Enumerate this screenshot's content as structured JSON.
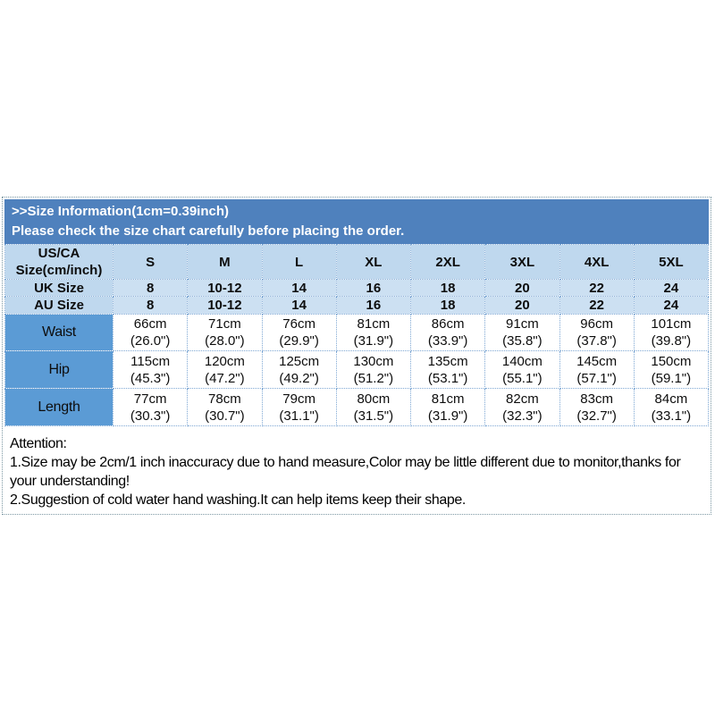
{
  "banner": {
    "line1": ">>Size Information(1cm=0.39inch)",
    "line2": "Please check the size chart carefully before placing the order."
  },
  "size_table": {
    "corner": {
      "line1": "US/CA",
      "line2": "Size(cm/inch)"
    },
    "columns": [
      "S",
      "M",
      "L",
      "XL",
      "2XL",
      "3XL",
      "4XL",
      "5XL"
    ],
    "size_rows": [
      {
        "label": "UK Size",
        "values": [
          "8",
          "10-12",
          "14",
          "16",
          "18",
          "20",
          "22",
          "24"
        ]
      },
      {
        "label": "AU Size",
        "values": [
          "8",
          "10-12",
          "14",
          "16",
          "18",
          "20",
          "22",
          "24"
        ]
      }
    ],
    "measure_rows": [
      {
        "label": "Waist",
        "cm": [
          "66cm",
          "71cm",
          "76cm",
          "81cm",
          "86cm",
          "91cm",
          "96cm",
          "101cm"
        ],
        "inch": [
          "(26.0\")",
          "(28.0\")",
          "(29.9\")",
          "(31.9\")",
          "(33.9\")",
          "(35.8\")",
          "(37.8\")",
          "(39.8\")"
        ]
      },
      {
        "label": "Hip",
        "cm": [
          "115cm",
          "120cm",
          "125cm",
          "130cm",
          "135cm",
          "140cm",
          "145cm",
          "150cm"
        ],
        "inch": [
          "(45.3\")",
          "(47.2\")",
          "(49.2\")",
          "(51.2\")",
          "(53.1\")",
          "(55.1\")",
          "(57.1\")",
          "(59.1\")"
        ]
      },
      {
        "label": "Length",
        "cm": [
          "77cm",
          "78cm",
          "79cm",
          "80cm",
          "81cm",
          "82cm",
          "83cm",
          "84cm"
        ],
        "inch": [
          "(30.3\")",
          "(30.7\")",
          "(31.1\")",
          "(31.5\")",
          "(31.9\")",
          "(32.3\")",
          "(32.7\")",
          "(33.1\")"
        ]
      }
    ]
  },
  "attention": {
    "title": "Attention:",
    "line1": "1.Size may be 2cm/1 inch inaccuracy due to hand measure,Color may be little different due to monitor,thanks for your understanding!",
    "line2": "2.Suggestion of cold water hand washing.It can help items keep their shape."
  },
  "colors": {
    "banner_blue": "#4f81bd",
    "header_light_blue": "#bfd8ee",
    "row_light_blue": "#cce0f2",
    "label_blue": "#5b9bd5"
  }
}
